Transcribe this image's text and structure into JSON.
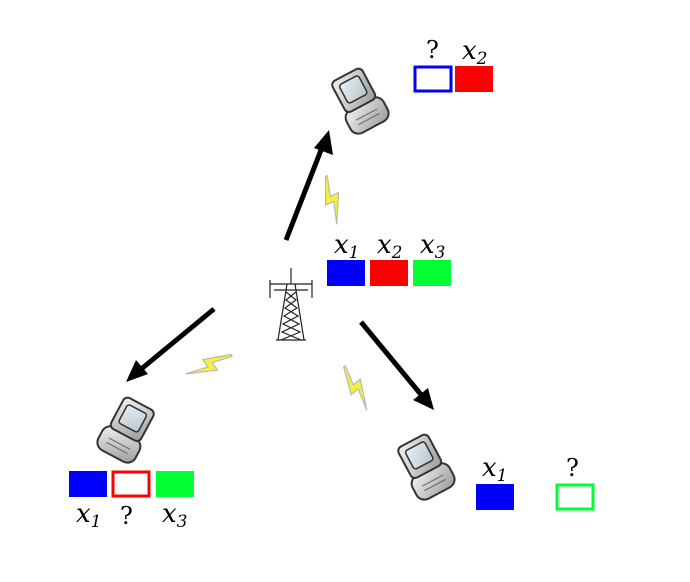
{
  "colors": {
    "x1": "#0000ff",
    "x2": "#ff0000",
    "x3": "#00ff33",
    "arrow": "#000000",
    "lightning": "#f5f03c"
  },
  "icons": {
    "base_station": "cell-tower-icon",
    "phone": "cellphone-icon",
    "signal": "lightning-bolt-icon"
  },
  "base_station": {
    "blocks": [
      {
        "var": "x",
        "sub": "1",
        "state": "filled",
        "color": "#0000ff"
      },
      {
        "var": "x",
        "sub": "2",
        "state": "filled",
        "color": "#ff0000"
      },
      {
        "var": "x",
        "sub": "3",
        "state": "filled",
        "color": "#00ff33"
      }
    ]
  },
  "receivers": {
    "top": {
      "blocks": [
        {
          "label": "?",
          "state": "missing",
          "color": "#0000ff"
        },
        {
          "var": "x",
          "sub": "2",
          "state": "filled",
          "color": "#ff0000"
        }
      ]
    },
    "left": {
      "blocks": [
        {
          "var": "x",
          "sub": "1",
          "state": "filled",
          "color": "#0000ff"
        },
        {
          "label": "?",
          "state": "missing",
          "color": "#ff0000"
        },
        {
          "var": "x",
          "sub": "3",
          "state": "filled",
          "color": "#00ff33"
        }
      ]
    },
    "right": {
      "blocks": [
        {
          "var": "x",
          "sub": "1",
          "state": "filled",
          "color": "#0000ff"
        },
        {
          "label": "?",
          "state": "missing",
          "color": "#00ff33"
        }
      ]
    }
  }
}
